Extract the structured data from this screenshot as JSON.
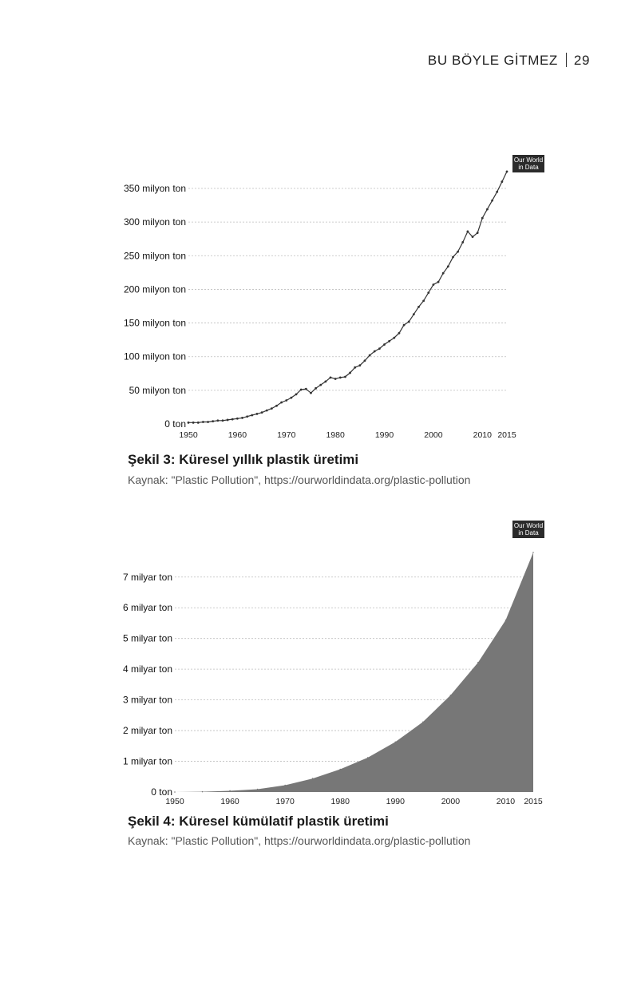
{
  "header": {
    "running_title": "BU BÖYLE GİTMEZ",
    "page_number": "29"
  },
  "badge": {
    "line1": "Our World",
    "line2": "in Data"
  },
  "figure1": {
    "caption": "Şekil 3: Küresel yıllık plastik üretimi",
    "source": "Kaynak: \"Plastic Pollution\", https://ourworldindata.org/plastic-pollution"
  },
  "figure2": {
    "caption": "Şekil 4: Küresel kümülatif plastik üretimi",
    "source": "Kaynak: \"Plastic Pollution\", https://ourworldindata.org/plastic-pollution"
  },
  "chart_data": [
    {
      "type": "line",
      "title": "",
      "xlabel": "",
      "ylabel": "",
      "xlim": [
        1950,
        2015
      ],
      "ylim": [
        0,
        350
      ],
      "grid": true,
      "line_color": "#333333",
      "x_ticks": [
        "1950",
        "1960",
        "1970",
        "1980",
        "1990",
        "2000",
        "2010",
        "2015"
      ],
      "y_ticks": [
        {
          "value": 0,
          "label": "0 ton"
        },
        {
          "value": 50,
          "label": "50 milyon ton"
        },
        {
          "value": 100,
          "label": "100 milyon ton"
        },
        {
          "value": 150,
          "label": "150 milyon ton"
        },
        {
          "value": 200,
          "label": "200 milyon ton"
        },
        {
          "value": 250,
          "label": "250 milyon ton"
        },
        {
          "value": 300,
          "label": "300 milyon ton"
        },
        {
          "value": 350,
          "label": "350 milyon ton"
        }
      ],
      "x": [
        1950,
        1951,
        1952,
        1953,
        1954,
        1955,
        1956,
        1957,
        1958,
        1959,
        1960,
        1961,
        1962,
        1963,
        1964,
        1965,
        1966,
        1967,
        1968,
        1969,
        1970,
        1971,
        1972,
        1973,
        1974,
        1975,
        1976,
        1977,
        1978,
        1979,
        1980,
        1981,
        1982,
        1983,
        1984,
        1985,
        1986,
        1987,
        1988,
        1989,
        1990,
        1991,
        1992,
        1993,
        1994,
        1995,
        1996,
        1997,
        1998,
        1999,
        2000,
        2001,
        2002,
        2003,
        2004,
        2005,
        2006,
        2007,
        2008,
        2009,
        2010,
        2011,
        2012,
        2013,
        2014,
        2015
      ],
      "y": [
        2,
        2,
        2,
        3,
        3,
        4,
        5,
        5,
        6,
        7,
        8,
        9,
        11,
        13,
        15,
        17,
        20,
        23,
        27,
        32,
        35,
        39,
        44,
        51,
        52,
        46,
        53,
        58,
        63,
        69,
        67,
        69,
        70,
        76,
        84,
        87,
        94,
        102,
        108,
        112,
        118,
        123,
        128,
        135,
        147,
        152,
        163,
        174,
        183,
        195,
        207,
        211,
        224,
        234,
        248,
        256,
        270,
        286,
        278,
        284,
        306,
        319,
        332,
        345,
        360,
        375
      ]
    },
    {
      "type": "area",
      "title": "",
      "xlabel": "",
      "ylabel": "",
      "xlim": [
        1950,
        2015
      ],
      "ylim": [
        0,
        7.8
      ],
      "grid": true,
      "fill_color": "#777777",
      "x_ticks": [
        "1950",
        "1960",
        "1970",
        "1980",
        "1990",
        "2000",
        "2010",
        "2015"
      ],
      "y_ticks": [
        {
          "value": 0,
          "label": "0 ton"
        },
        {
          "value": 1,
          "label": "1 milyar ton"
        },
        {
          "value": 2,
          "label": "2 milyar ton"
        },
        {
          "value": 3,
          "label": "3 milyar ton"
        },
        {
          "value": 4,
          "label": "4 milyar ton"
        },
        {
          "value": 5,
          "label": "5 milyar ton"
        },
        {
          "value": 6,
          "label": "6 milyar ton"
        },
        {
          "value": 7,
          "label": "7 milyar ton"
        }
      ],
      "x": [
        1950,
        1955,
        1960,
        1965,
        1970,
        1975,
        1980,
        1985,
        1990,
        1995,
        2000,
        2005,
        2010,
        2015
      ],
      "y": [
        0.0,
        0.01,
        0.04,
        0.09,
        0.22,
        0.44,
        0.74,
        1.12,
        1.63,
        2.28,
        3.15,
        4.22,
        5.6,
        7.8
      ]
    }
  ]
}
